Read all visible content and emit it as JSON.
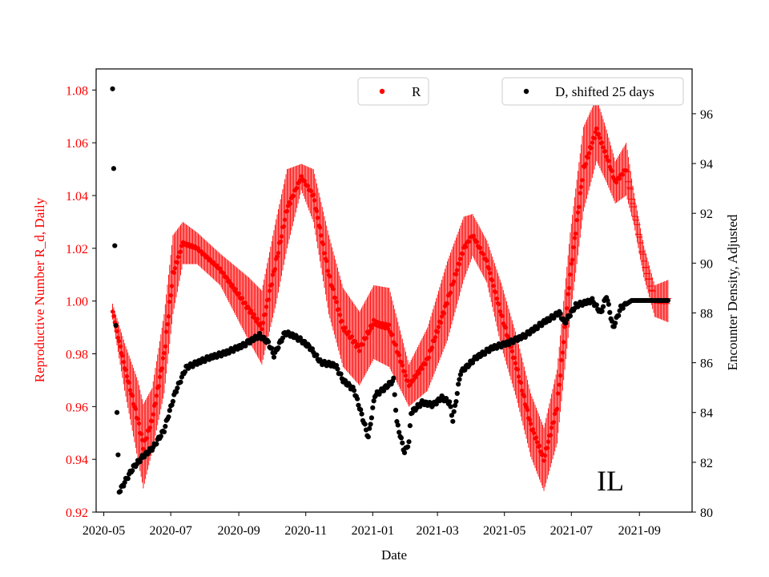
{
  "chart_data": {
    "type": "scatter",
    "xlabel": "Date",
    "ylabel_left": "Reproductive Number R_d, Daily",
    "ylabel_right": "Encounter Density, Adjusted",
    "annotation": "IL",
    "x_range": [
      "2020-04-24",
      "2021-10-19"
    ],
    "ylim_left": [
      0.92,
      1.088
    ],
    "ylim_right": [
      80,
      97.8
    ],
    "x_ticks": [
      "2020-05",
      "2020-07",
      "2020-09",
      "2020-11",
      "2021-01",
      "2021-03",
      "2021-05",
      "2021-07",
      "2021-09"
    ],
    "x_tick_dates": [
      "2020-05-01",
      "2020-07-01",
      "2020-09-01",
      "2020-11-01",
      "2021-01-01",
      "2021-03-01",
      "2021-05-01",
      "2021-07-01",
      "2021-09-01"
    ],
    "y_ticks_left": [
      "0.92",
      "0.94",
      "0.96",
      "0.98",
      "1.00",
      "1.02",
      "1.04",
      "1.06",
      "1.08"
    ],
    "y_ticks_right": [
      "80",
      "82",
      "84",
      "86",
      "88",
      "90",
      "92",
      "94",
      "96"
    ],
    "colors": {
      "r_series": "#ff0000",
      "d_series": "#000000"
    },
    "legend_r": "R",
    "legend_d": "D, shifted 25 days",
    "series": [
      {
        "name": "R",
        "axis": "left",
        "note": "daily R with error bars",
        "knots": [
          [
            "2020-05-09",
            0.996,
            0.003
          ],
          [
            "2020-05-20",
            0.975,
            0.009
          ],
          [
            "2020-06-01",
            0.955,
            0.015
          ],
          [
            "2020-06-06",
            0.945,
            0.016
          ],
          [
            "2020-06-14",
            0.955,
            0.012
          ],
          [
            "2020-06-25",
            0.98,
            0.015
          ],
          [
            "2020-07-03",
            1.01,
            0.015
          ],
          [
            "2020-07-12",
            1.022,
            0.008
          ],
          [
            "2020-07-25",
            1.02,
            0.006
          ],
          [
            "2020-08-15",
            1.012,
            0.006
          ],
          [
            "2020-09-10",
            0.997,
            0.012
          ],
          [
            "2020-09-22",
            0.99,
            0.014
          ],
          [
            "2020-10-05",
            1.015,
            0.016
          ],
          [
            "2020-10-15",
            1.035,
            0.015
          ],
          [
            "2020-10-28",
            1.047,
            0.005
          ],
          [
            "2020-11-08",
            1.04,
            0.01
          ],
          [
            "2020-11-22",
            1.01,
            0.015
          ],
          [
            "2020-12-05",
            0.99,
            0.015
          ],
          [
            "2020-12-20",
            0.982,
            0.014
          ],
          [
            "2021-01-02",
            0.992,
            0.014
          ],
          [
            "2021-01-16",
            0.99,
            0.015
          ],
          [
            "2021-02-03",
            0.968,
            0.008
          ],
          [
            "2021-02-20",
            0.978,
            0.012
          ],
          [
            "2021-03-10",
            1.0,
            0.015
          ],
          [
            "2021-03-25",
            1.02,
            0.012
          ],
          [
            "2021-04-02",
            1.025,
            0.008
          ],
          [
            "2021-04-15",
            1.015,
            0.008
          ],
          [
            "2021-04-28",
            0.995,
            0.012
          ],
          [
            "2021-05-12",
            0.975,
            0.012
          ],
          [
            "2021-05-25",
            0.953,
            0.012
          ],
          [
            "2021-06-06",
            0.94,
            0.012
          ],
          [
            "2021-06-18",
            0.96,
            0.014
          ],
          [
            "2021-06-30",
            1.01,
            0.016
          ],
          [
            "2021-07-12",
            1.05,
            0.016
          ],
          [
            "2021-07-24",
            1.065,
            0.012
          ],
          [
            "2021-08-02",
            1.055,
            0.01
          ],
          [
            "2021-08-10",
            1.045,
            0.008
          ],
          [
            "2021-08-20",
            1.05,
            0.01
          ],
          [
            "2021-08-27",
            1.035,
            0.006
          ],
          [
            "2021-09-05",
            1.015,
            0.006
          ],
          [
            "2021-09-15",
            1.0,
            0.006
          ],
          [
            "2021-09-27",
            1.0,
            0.008
          ]
        ]
      },
      {
        "name": "D, shifted 25 days",
        "axis": "right",
        "knots": [
          [
            "2020-05-09",
            97.0
          ],
          [
            "2020-05-10",
            93.8
          ],
          [
            "2020-05-11",
            90.7
          ],
          [
            "2020-05-12",
            87.5
          ],
          [
            "2020-05-13",
            84.0
          ],
          [
            "2020-05-14",
            82.3
          ],
          [
            "2020-05-15",
            80.8
          ],
          [
            "2020-05-20",
            81.2
          ],
          [
            "2020-05-28",
            81.8
          ],
          [
            "2020-06-05",
            82.2
          ],
          [
            "2020-06-15",
            82.6
          ],
          [
            "2020-06-25",
            83.3
          ],
          [
            "2020-07-05",
            84.8
          ],
          [
            "2020-07-15",
            85.8
          ],
          [
            "2020-07-25",
            86.0
          ],
          [
            "2020-08-05",
            86.2
          ],
          [
            "2020-08-20",
            86.4
          ],
          [
            "2020-09-05",
            86.7
          ],
          [
            "2020-09-20",
            87.1
          ],
          [
            "2020-09-28",
            86.8
          ],
          [
            "2020-10-03",
            86.3
          ],
          [
            "2020-10-13",
            87.2
          ],
          [
            "2020-10-20",
            87.1
          ],
          [
            "2020-10-28",
            86.9
          ],
          [
            "2020-11-05",
            86.6
          ],
          [
            "2020-11-15",
            86.0
          ],
          [
            "2020-11-28",
            85.9
          ],
          [
            "2020-12-05",
            85.3
          ],
          [
            "2020-12-15",
            84.9
          ],
          [
            "2020-12-20",
            84.2
          ],
          [
            "2020-12-28",
            83.0
          ],
          [
            "2021-01-03",
            84.7
          ],
          [
            "2021-01-10",
            84.9
          ],
          [
            "2021-01-20",
            85.3
          ],
          [
            "2021-01-23",
            83.6
          ],
          [
            "2021-01-30",
            82.4
          ],
          [
            "2021-02-03",
            82.8
          ],
          [
            "2021-02-05",
            84.0
          ],
          [
            "2021-02-15",
            84.4
          ],
          [
            "2021-02-25",
            84.3
          ],
          [
            "2021-03-05",
            84.6
          ],
          [
            "2021-03-12",
            84.4
          ],
          [
            "2021-03-15",
            83.7
          ],
          [
            "2021-03-22",
            85.6
          ],
          [
            "2021-04-05",
            86.2
          ],
          [
            "2021-04-20",
            86.6
          ],
          [
            "2021-05-05",
            86.8
          ],
          [
            "2021-05-20",
            87.1
          ],
          [
            "2021-06-05",
            87.6
          ],
          [
            "2021-06-20",
            88.0
          ],
          [
            "2021-06-25",
            87.6
          ],
          [
            "2021-07-05",
            88.3
          ],
          [
            "2021-07-20",
            88.5
          ],
          [
            "2021-07-28",
            88.0
          ],
          [
            "2021-08-02",
            88.7
          ],
          [
            "2021-08-08",
            87.4
          ],
          [
            "2021-08-15",
            88.2
          ],
          [
            "2021-08-25",
            88.5
          ],
          [
            "2021-09-27",
            88.5
          ]
        ]
      }
    ]
  }
}
